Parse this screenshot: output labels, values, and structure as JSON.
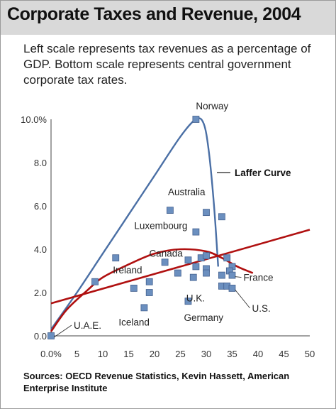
{
  "chart_data": {
    "type": "scatter",
    "title": "Corporate Taxes and Revenue, 2004",
    "subtitle": "Left scale represents tax revenues as a percentage of GDP. Bottom scale represents central government corporate tax rates.",
    "xlabel": "",
    "ylabel": "",
    "xlim": [
      0,
      50
    ],
    "ylim": [
      0,
      10
    ],
    "x_ticks": [
      "0.0%",
      "5",
      "10",
      "15",
      "20",
      "25",
      "30",
      "35",
      "40",
      "45",
      "50"
    ],
    "y_ticks": [
      "0.0",
      "2.0",
      "4.0",
      "6.0",
      "8.0",
      "10.0%"
    ],
    "grid": false,
    "points": [
      {
        "x": 0.0,
        "y": 0.0,
        "label": "U.A.E."
      },
      {
        "x": 28.0,
        "y": 10.0,
        "label": "Norway"
      },
      {
        "x": 30.0,
        "y": 5.7,
        "label": "Australia"
      },
      {
        "x": 33.0,
        "y": 5.5,
        "label": ""
      },
      {
        "x": 23.0,
        "y": 5.8,
        "label": ""
      },
      {
        "x": 28.0,
        "y": 4.8,
        "label": "Luxembourg"
      },
      {
        "x": 12.5,
        "y": 3.6,
        "label": "Ireland"
      },
      {
        "x": 22.0,
        "y": 3.4,
        "label": ""
      },
      {
        "x": 26.5,
        "y": 3.5,
        "label": "Canada"
      },
      {
        "x": 29.0,
        "y": 3.6,
        "label": ""
      },
      {
        "x": 30.0,
        "y": 3.7,
        "label": ""
      },
      {
        "x": 28.0,
        "y": 3.2,
        "label": ""
      },
      {
        "x": 30.0,
        "y": 3.1,
        "label": ""
      },
      {
        "x": 30.0,
        "y": 2.9,
        "label": ""
      },
      {
        "x": 24.5,
        "y": 2.9,
        "label": ""
      },
      {
        "x": 27.5,
        "y": 2.7,
        "label": "U.K."
      },
      {
        "x": 8.5,
        "y": 2.5,
        "label": ""
      },
      {
        "x": 19.0,
        "y": 2.5,
        "label": ""
      },
      {
        "x": 16.0,
        "y": 2.2,
        "label": ""
      },
      {
        "x": 19.0,
        "y": 2.0,
        "label": ""
      },
      {
        "x": 18.0,
        "y": 1.3,
        "label": "Iceland"
      },
      {
        "x": 26.5,
        "y": 1.6,
        "label": "Germany"
      },
      {
        "x": 34.0,
        "y": 3.6,
        "label": ""
      },
      {
        "x": 35.0,
        "y": 3.2,
        "label": ""
      },
      {
        "x": 34.5,
        "y": 3.0,
        "label": ""
      },
      {
        "x": 33.0,
        "y": 2.8,
        "label": ""
      },
      {
        "x": 35.0,
        "y": 2.8,
        "label": "France"
      },
      {
        "x": 33.0,
        "y": 2.3,
        "label": ""
      },
      {
        "x": 34.0,
        "y": 2.3,
        "label": ""
      },
      {
        "x": 35.0,
        "y": 2.2,
        "label": "U.S."
      }
    ],
    "annotations": {
      "laffer": "Laffer Curve"
    },
    "curves": {
      "laffer_curve": [
        [
          0,
          0.3
        ],
        [
          5,
          2.0
        ],
        [
          10,
          3.8
        ],
        [
          15,
          5.6
        ],
        [
          20,
          7.4
        ],
        [
          25,
          9.2
        ],
        [
          28,
          10.0
        ],
        [
          29.5,
          9.8
        ],
        [
          30.5,
          8.5
        ],
        [
          31.5,
          6.0
        ],
        [
          32.3,
          3.2
        ]
      ],
      "quadratic_fit": [
        [
          0,
          0.2
        ],
        [
          3,
          1.2
        ],
        [
          7,
          2.1
        ],
        [
          10,
          2.7
        ],
        [
          15,
          3.3
        ],
        [
          20,
          3.8
        ],
        [
          25,
          4.0
        ],
        [
          30,
          3.9
        ],
        [
          33,
          3.6
        ],
        [
          36,
          3.2
        ],
        [
          39,
          2.9
        ]
      ],
      "linear_fit": [
        [
          0,
          1.5
        ],
        [
          50,
          4.9
        ]
      ]
    },
    "colors": {
      "points": "#6b8fbf",
      "points_stroke": "#44618f",
      "laffer_curve": "#4a6fa5",
      "fit_lines": "#b01010",
      "title_bar": "#d9d9d9"
    }
  },
  "source": "Sources: OECD Revenue Statistics, Kevin Hassett, American Enterprise Institute"
}
